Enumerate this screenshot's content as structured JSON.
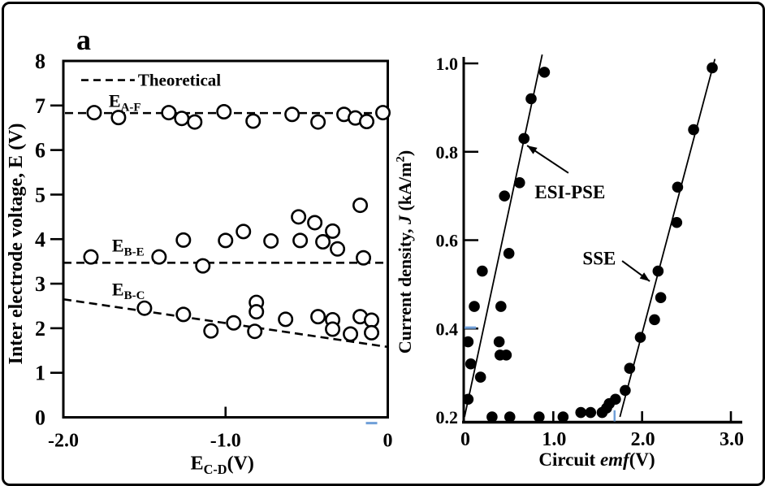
{
  "panel_label": "a",
  "colors": {
    "ink": "#000000",
    "background": "#ffffff",
    "accent_blue": "#6f9fd8"
  },
  "chart_data": [
    {
      "id": "inter-electrode-voltage",
      "type": "scatter",
      "marker": "open-circle",
      "xlabel_parts": [
        {
          "t": "E"
        },
        {
          "t": "C-D",
          "sub": true
        },
        {
          "t": "(V)"
        }
      ],
      "ylabel": "Inter electrode voltage, E (V)",
      "xlim": [
        -2.0,
        0.0
      ],
      "ylim": [
        0,
        8
      ],
      "x_ticks": [
        {
          "v": -2.0,
          "label": "-2.0"
        },
        {
          "v": -1.0,
          "label": "-1.0"
        },
        {
          "v": 0,
          "label": "0"
        }
      ],
      "y_ticks": [
        {
          "v": 0,
          "label": "0"
        },
        {
          "v": 1,
          "label": "1"
        },
        {
          "v": 2,
          "label": "2"
        },
        {
          "v": 3,
          "label": "3"
        },
        {
          "v": 4,
          "label": "4"
        },
        {
          "v": 5,
          "label": "5"
        },
        {
          "v": 6,
          "label": "6"
        },
        {
          "v": 7,
          "label": "7"
        },
        {
          "v": 8,
          "label": "8"
        }
      ],
      "legend": {
        "label": "Theoretical",
        "line_style": "dashed",
        "line_x": [
          -1.89,
          -1.56
        ],
        "line_y": 7.57,
        "text_x": -1.54,
        "text_y": 7.44
      },
      "theoretical_lines": [
        {
          "name": "E_A-F",
          "from": [
            -1.99,
            6.83
          ],
          "to": [
            0,
            6.83
          ]
        },
        {
          "name": "E_B-E",
          "from": [
            -2.0,
            3.47
          ],
          "to": [
            0,
            3.47
          ]
        },
        {
          "name": "E_B-C",
          "from": [
            -2.0,
            2.65
          ],
          "to": [
            0,
            1.58
          ]
        }
      ],
      "series": [
        {
          "name": "E_A-F",
          "label_parts": [
            {
              "t": "E"
            },
            {
              "t": "A-F",
              "sub": true
            }
          ],
          "label_pos": [
            -1.72,
            6.97
          ],
          "points": [
            [
              -1.81,
              6.84
            ],
            [
              -1.66,
              6.73
            ],
            [
              -1.35,
              6.84
            ],
            [
              -1.27,
              6.71
            ],
            [
              -1.19,
              6.63
            ],
            [
              -1.01,
              6.86
            ],
            [
              -0.83,
              6.65
            ],
            [
              -0.59,
              6.8
            ],
            [
              -0.43,
              6.63
            ],
            [
              -0.27,
              6.8
            ],
            [
              -0.2,
              6.72
            ],
            [
              -0.13,
              6.64
            ],
            [
              -0.03,
              6.84
            ]
          ]
        },
        {
          "name": "E_B-E",
          "label_parts": [
            {
              "t": "E"
            },
            {
              "t": "B-E",
              "sub": true
            }
          ],
          "label_pos": [
            -1.7,
            3.72
          ],
          "points": [
            [
              -1.83,
              3.6
            ],
            [
              -1.41,
              3.6
            ],
            [
              -1.26,
              3.98
            ],
            [
              -1.14,
              3.4
            ],
            [
              -1.0,
              3.97
            ],
            [
              -0.89,
              4.17
            ],
            [
              -0.72,
              3.96
            ],
            [
              -0.55,
              4.5
            ],
            [
              -0.54,
              3.97
            ],
            [
              -0.45,
              4.37
            ],
            [
              -0.4,
              3.94
            ],
            [
              -0.34,
              4.18
            ],
            [
              -0.31,
              3.78
            ],
            [
              -0.17,
              4.76
            ],
            [
              -0.15,
              3.58
            ]
          ]
        },
        {
          "name": "E_B-C",
          "label_parts": [
            {
              "t": "E"
            },
            {
              "t": "B-C",
              "sub": true
            }
          ],
          "label_pos": [
            -1.7,
            2.74
          ],
          "points": [
            [
              -1.5,
              2.45
            ],
            [
              -1.26,
              2.31
            ],
            [
              -1.09,
              1.94
            ],
            [
              -0.95,
              2.12
            ],
            [
              -0.81,
              2.58
            ],
            [
              -0.81,
              2.37
            ],
            [
              -0.82,
              1.93
            ],
            [
              -0.63,
              2.2
            ],
            [
              -0.43,
              2.26
            ],
            [
              -0.34,
              2.19
            ],
            [
              -0.34,
              1.98
            ],
            [
              -0.23,
              1.87
            ],
            [
              -0.17,
              2.26
            ],
            [
              -0.1,
              2.18
            ],
            [
              -0.1,
              1.9
            ]
          ]
        }
      ],
      "blue_marks": [
        {
          "type": "h",
          "x1": -0.135,
          "x2": -0.065,
          "y": -0.13
        }
      ]
    },
    {
      "id": "current-density",
      "type": "scatter",
      "marker": "filled-circle",
      "xlabel_parts": [
        {
          "t": "Circuit "
        },
        {
          "t": "emf",
          "italic": true
        },
        {
          "t": "(V)"
        }
      ],
      "ylabel_parts": [
        {
          "t": "Current density, "
        },
        {
          "t": "J",
          "italic": true
        },
        {
          "t": " (kA/m"
        },
        {
          "t": "2",
          "sup": true
        },
        {
          "t": ")"
        }
      ],
      "xlim": [
        0,
        3.0
      ],
      "ylim": [
        0.2,
        1.0
      ],
      "x_ticks": [
        {
          "v": 0,
          "label": "0"
        },
        {
          "v": 1.0,
          "label": "1.0"
        },
        {
          "v": 2.0,
          "label": "2.0"
        },
        {
          "v": 3.0,
          "label": "3.0"
        }
      ],
      "y_ticks": [
        {
          "v": 0.2,
          "label": "0.2"
        },
        {
          "v": 0.4,
          "label": "0.4"
        },
        {
          "v": 0.6,
          "label": "0.6"
        },
        {
          "v": 0.8,
          "label": "0.8"
        },
        {
          "v": 1.0,
          "label": "1.0"
        }
      ],
      "fit_lines": [
        {
          "name": "ESI-PSE",
          "from": [
            0.0,
            0.2
          ],
          "to": [
            0.875,
            1.02
          ]
        },
        {
          "name": "SSE",
          "from": [
            1.75,
            0.2
          ],
          "to": [
            2.82,
            1.01
          ]
        }
      ],
      "series": [
        {
          "name": "ESI-PSE",
          "points": [
            [
              0.04,
              0.37
            ],
            [
              0.04,
              0.24
            ],
            [
              0.07,
              0.32
            ],
            [
              0.11,
              0.45
            ],
            [
              0.18,
              0.29
            ],
            [
              0.2,
              0.53
            ],
            [
              0.39,
              0.37
            ],
            [
              0.4,
              0.34
            ],
            [
              0.41,
              0.45
            ],
            [
              0.45,
              0.7
            ],
            [
              0.47,
              0.34
            ],
            [
              0.5,
              0.57
            ],
            [
              0.62,
              0.73
            ],
            [
              0.67,
              0.83
            ],
            [
              0.75,
              0.92
            ],
            [
              0.9,
              0.98
            ]
          ]
        },
        {
          "name": "SSE",
          "points": [
            [
              0.31,
              0.2
            ],
            [
              0.51,
              0.2
            ],
            [
              0.84,
              0.2
            ],
            [
              1.11,
              0.2
            ],
            [
              1.31,
              0.21
            ],
            [
              1.42,
              0.21
            ],
            [
              1.55,
              0.21
            ],
            [
              1.6,
              0.22
            ],
            [
              1.63,
              0.23
            ],
            [
              1.7,
              0.24
            ],
            [
              1.81,
              0.26
            ],
            [
              1.86,
              0.31
            ],
            [
              1.98,
              0.38
            ],
            [
              2.14,
              0.42
            ],
            [
              2.21,
              0.47
            ],
            [
              2.18,
              0.53
            ],
            [
              2.39,
              0.64
            ],
            [
              2.4,
              0.72
            ],
            [
              2.58,
              0.85
            ],
            [
              2.79,
              0.99
            ]
          ]
        }
      ],
      "annotations": [
        {
          "label": "ESI-PSE",
          "text_pos": [
            0.79,
            0.695
          ],
          "arrow_from": [
            1.17,
            0.752
          ],
          "arrow_to": [
            0.705,
            0.814
          ]
        },
        {
          "label": "SSE",
          "text_pos": [
            1.33,
            0.545
          ],
          "arrow_from": [
            1.775,
            0.553
          ],
          "arrow_to": [
            2.086,
            0.507
          ]
        }
      ],
      "blue_marks": [
        {
          "type": "h",
          "x1": 0.0,
          "x2": 0.13,
          "y": 0.402
        },
        {
          "type": "v",
          "x": 1.69,
          "y1": 0.19,
          "y2": 0.215
        }
      ]
    }
  ]
}
